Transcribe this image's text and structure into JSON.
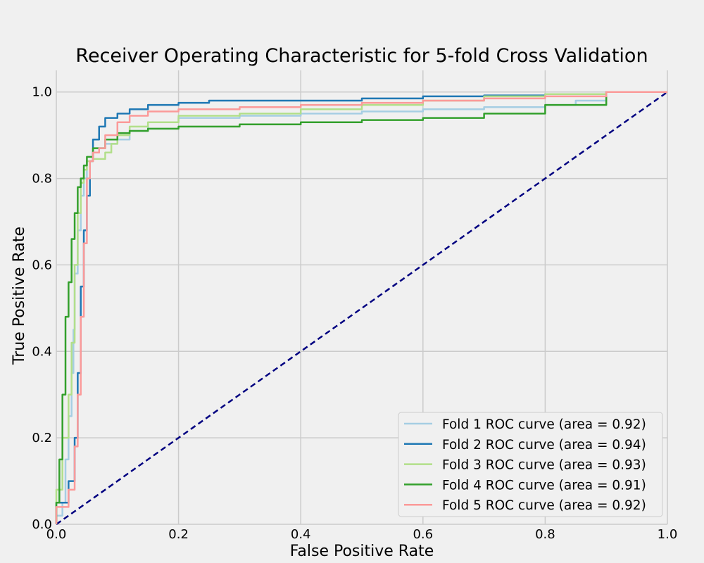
{
  "chart_data": {
    "type": "line",
    "title": "Receiver Operating Characteristic for 5-fold Cross Validation",
    "xlabel": "False Positive Rate",
    "ylabel": "True Positive Rate",
    "xlim": [
      0.0,
      1.0
    ],
    "ylim": [
      0.0,
      1.05
    ],
    "xticks": [
      "0.0",
      "0.2",
      "0.4",
      "0.6",
      "0.8",
      "1.0"
    ],
    "yticks": [
      "0.0",
      "0.2",
      "0.4",
      "0.6",
      "0.8",
      "1.0"
    ],
    "grid": true,
    "legend_position": "lower-right",
    "reference_line": {
      "x": [
        0.0,
        1.0
      ],
      "y": [
        0.0,
        1.0
      ],
      "color": "#000080",
      "style": "dashed"
    },
    "series": [
      {
        "name": "Fold 1 ROC curve (area = 0.92)",
        "color": "#a6cee3",
        "x": [
          0.0,
          0.01,
          0.015,
          0.02,
          0.025,
          0.028,
          0.03,
          0.035,
          0.04,
          0.045,
          0.05,
          0.06,
          0.07,
          0.08,
          0.1,
          0.12,
          0.15,
          0.2,
          0.3,
          0.4,
          0.5,
          0.6,
          0.7,
          0.8,
          0.85,
          0.9,
          1.0
        ],
        "y": [
          0.0,
          0.02,
          0.05,
          0.15,
          0.25,
          0.35,
          0.45,
          0.58,
          0.68,
          0.76,
          0.8,
          0.84,
          0.86,
          0.87,
          0.88,
          0.89,
          0.91,
          0.93,
          0.94,
          0.945,
          0.95,
          0.955,
          0.96,
          0.965,
          0.97,
          0.98,
          1.0
        ]
      },
      {
        "name": "Fold 2 ROC curve (area = 0.94)",
        "color": "#1f78b4",
        "x": [
          0.0,
          0.02,
          0.03,
          0.035,
          0.04,
          0.045,
          0.05,
          0.055,
          0.06,
          0.07,
          0.08,
          0.1,
          0.12,
          0.15,
          0.2,
          0.25,
          0.3,
          0.4,
          0.5,
          0.6,
          0.7,
          0.8,
          0.9,
          1.0
        ],
        "y": [
          0.0,
          0.05,
          0.1,
          0.2,
          0.35,
          0.55,
          0.68,
          0.76,
          0.84,
          0.89,
          0.92,
          0.94,
          0.95,
          0.96,
          0.97,
          0.975,
          0.98,
          0.98,
          0.98,
          0.985,
          0.99,
          0.992,
          0.995,
          1.0
        ]
      },
      {
        "name": "Fold 3 ROC curve (area = 0.93)",
        "color": "#b2df8a",
        "x": [
          0.0,
          0.01,
          0.02,
          0.025,
          0.03,
          0.035,
          0.04,
          0.045,
          0.05,
          0.06,
          0.08,
          0.09,
          0.1,
          0.12,
          0.15,
          0.2,
          0.3,
          0.4,
          0.5,
          0.6,
          0.7,
          0.8,
          0.9,
          1.0
        ],
        "y": [
          0.0,
          0.08,
          0.2,
          0.3,
          0.42,
          0.6,
          0.72,
          0.79,
          0.82,
          0.84,
          0.845,
          0.86,
          0.88,
          0.9,
          0.92,
          0.93,
          0.945,
          0.95,
          0.96,
          0.97,
          0.98,
          0.99,
          0.995,
          1.0
        ]
      },
      {
        "name": "Fold 4 ROC curve (area = 0.91)",
        "color": "#33a02c",
        "x": [
          0.0,
          0.005,
          0.01,
          0.015,
          0.02,
          0.025,
          0.03,
          0.035,
          0.04,
          0.045,
          0.05,
          0.06,
          0.08,
          0.1,
          0.12,
          0.15,
          0.2,
          0.3,
          0.4,
          0.5,
          0.6,
          0.7,
          0.8,
          0.9,
          1.0
        ],
        "y": [
          0.0,
          0.05,
          0.15,
          0.3,
          0.48,
          0.56,
          0.66,
          0.72,
          0.78,
          0.8,
          0.83,
          0.85,
          0.87,
          0.89,
          0.905,
          0.91,
          0.915,
          0.92,
          0.925,
          0.93,
          0.935,
          0.94,
          0.95,
          0.97,
          1.0
        ]
      },
      {
        "name": "Fold 5 ROC curve (area = 0.92)",
        "color": "#fb9a99",
        "x": [
          0.0,
          0.02,
          0.03,
          0.035,
          0.04,
          0.045,
          0.05,
          0.055,
          0.06,
          0.07,
          0.08,
          0.1,
          0.12,
          0.15,
          0.2,
          0.3,
          0.4,
          0.5,
          0.6,
          0.7,
          0.8,
          0.9,
          1.0
        ],
        "y": [
          0.0,
          0.04,
          0.08,
          0.18,
          0.3,
          0.48,
          0.65,
          0.8,
          0.84,
          0.86,
          0.87,
          0.9,
          0.93,
          0.945,
          0.955,
          0.96,
          0.965,
          0.97,
          0.975,
          0.98,
          0.985,
          0.99,
          1.0
        ]
      }
    ]
  }
}
